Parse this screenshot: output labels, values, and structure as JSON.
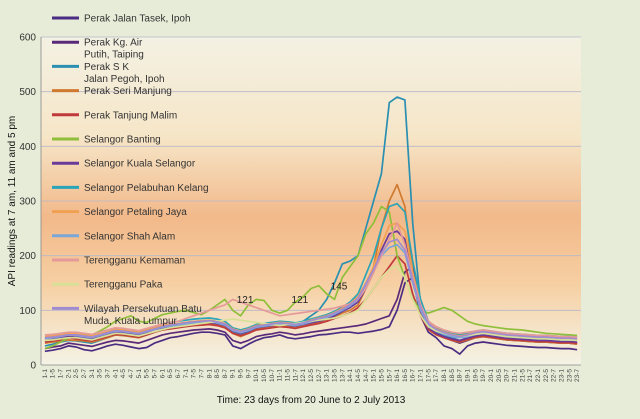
{
  "chart_data": {
    "type": "line",
    "title": "",
    "xlabel": "Time: 23 days from 20 June to 2 July 2013",
    "ylabel": "API readings at 7 am, 11 am and 5 pm",
    "ylim": [
      0,
      600
    ],
    "yticks": [
      0,
      100,
      200,
      300,
      400,
      500,
      600
    ],
    "grid": true,
    "legend_position": "left",
    "categories": [
      "1-1",
      "1-5",
      "1-7",
      "2-1",
      "2-5",
      "2-7",
      "3-1",
      "3-5",
      "3-7",
      "4-1",
      "4-5",
      "4-7",
      "5-1",
      "5-5",
      "5-7",
      "6-1",
      "6-5",
      "6-7",
      "7-1",
      "7-5",
      "7-7",
      "8-1",
      "8-5",
      "8-7",
      "9-1",
      "9-5",
      "9-7",
      "10-1",
      "10-5",
      "10-7",
      "11-1",
      "11-5",
      "11-7",
      "12-1",
      "12-5",
      "12-7",
      "13-1",
      "13-5",
      "13-7",
      "14-1",
      "14-5",
      "14-7",
      "15-1",
      "15-5",
      "15-7",
      "16-1",
      "16-5",
      "16-7",
      "17-1",
      "17-5",
      "17-7",
      "18-1",
      "18-5",
      "18-7",
      "19-1",
      "19-5",
      "19-7",
      "20-1",
      "20-5",
      "20-7",
      "21-1",
      "21-5",
      "21-7",
      "22-1",
      "22-5",
      "22-7",
      "23-1",
      "23-5",
      "23-7"
    ],
    "annotations": [
      {
        "label": "487",
        "x": "16-3",
        "y": 487
      },
      {
        "label": "145",
        "x": "13-1",
        "y": 145
      },
      {
        "label": "121",
        "x": "9-1",
        "y": 121
      },
      {
        "label": "121",
        "x": "11-5",
        "y": 121
      }
    ],
    "series": [
      {
        "name": "Perak Jalan Tasek, Ipoh",
        "color": "#4a2c82",
        "values": [
          25,
          27,
          30,
          35,
          33,
          28,
          26,
          30,
          35,
          38,
          36,
          33,
          30,
          32,
          40,
          45,
          50,
          52,
          55,
          58,
          60,
          60,
          58,
          55,
          35,
          30,
          38,
          45,
          50,
          52,
          55,
          50,
          48,
          50,
          52,
          55,
          56,
          58,
          60,
          60,
          58,
          60,
          62,
          65,
          70,
          100,
          150,
          160,
          90,
          60,
          50,
          35,
          30,
          20,
          35,
          40,
          42,
          40,
          38,
          36,
          35,
          34,
          33,
          32,
          32,
          31,
          30,
          30,
          28
        ]
      },
      {
        "name": "Perak Kg. Air Putih, Taiping",
        "color": "#5a2a7a",
        "values": [
          30,
          33,
          35,
          40,
          38,
          36,
          34,
          38,
          42,
          45,
          44,
          42,
          40,
          45,
          50,
          55,
          58,
          60,
          62,
          64,
          65,
          66,
          64,
          60,
          45,
          40,
          45,
          52,
          55,
          57,
          60,
          58,
          55,
          57,
          60,
          62,
          64,
          66,
          68,
          70,
          72,
          75,
          80,
          85,
          90,
          120,
          170,
          180,
          110,
          70,
          60,
          50,
          45,
          40,
          45,
          50,
          52,
          50,
          48,
          46,
          45,
          44,
          43,
          42,
          42,
          41,
          40,
          40,
          38
        ]
      },
      {
        "name": "Perak S K Jalan Pegoh, Ipoh",
        "color": "#2a8fb0",
        "values": [
          35,
          38,
          42,
          45,
          44,
          42,
          40,
          45,
          50,
          55,
          54,
          52,
          50,
          55,
          60,
          65,
          70,
          72,
          74,
          76,
          78,
          80,
          78,
          72,
          60,
          55,
          60,
          68,
          72,
          75,
          80,
          78,
          75,
          80,
          90,
          100,
          120,
          150,
          185,
          190,
          200,
          250,
          300,
          350,
          480,
          490,
          485,
          260,
          110,
          70,
          60,
          55,
          50,
          45,
          50,
          55,
          58,
          56,
          54,
          52,
          50,
          48,
          46,
          45,
          44,
          43,
          42,
          41,
          40
        ]
      },
      {
        "name": "Perak Seri Manjung",
        "color": "#d07a30",
        "values": [
          40,
          42,
          44,
          46,
          45,
          44,
          42,
          46,
          50,
          55,
          54,
          52,
          50,
          55,
          60,
          65,
          68,
          70,
          72,
          74,
          75,
          76,
          74,
          70,
          58,
          52,
          58,
          65,
          68,
          70,
          72,
          70,
          68,
          72,
          75,
          78,
          82,
          88,
          95,
          100,
          110,
          140,
          180,
          250,
          300,
          330,
          290,
          170,
          100,
          65,
          55,
          50,
          45,
          42,
          46,
          50,
          52,
          50,
          48,
          46,
          45,
          44,
          43,
          42,
          42,
          41,
          40,
          40,
          38
        ]
      },
      {
        "name": "Perak Tanjung Malim",
        "color": "#c0393b",
        "values": [
          42,
          44,
          46,
          50,
          48,
          46,
          44,
          48,
          52,
          56,
          55,
          53,
          51,
          55,
          60,
          64,
          66,
          68,
          70,
          72,
          73,
          74,
          72,
          68,
          58,
          54,
          58,
          64,
          66,
          68,
          70,
          69,
          67,
          70,
          73,
          76,
          80,
          85,
          90,
          95,
          105,
          120,
          140,
          160,
          180,
          200,
          185,
          130,
          90,
          65,
          56,
          50,
          46,
          43,
          47,
          51,
          53,
          51,
          49,
          47,
          46,
          45,
          44,
          43,
          43,
          42,
          41,
          41,
          40
        ]
      },
      {
        "name": "Selangor Banting",
        "color": "#8fbf3a",
        "values": [
          30,
          35,
          42,
          50,
          55,
          58,
          55,
          62,
          70,
          80,
          85,
          90,
          80,
          78,
          85,
          92,
          95,
          98,
          100,
          96,
          92,
          100,
          110,
          120,
          100,
          90,
          110,
          120,
          118,
          100,
          95,
          100,
          115,
          125,
          140,
          145,
          130,
          120,
          160,
          180,
          200,
          240,
          260,
          290,
          280,
          200,
          160,
          120,
          100,
          95,
          100,
          105,
          100,
          90,
          80,
          75,
          72,
          70,
          68,
          66,
          65,
          64,
          62,
          60,
          58,
          57,
          56,
          55,
          54
        ]
      },
      {
        "name": "Selangor Kuala Selangor",
        "color": "#6a3a9a",
        "values": [
          45,
          47,
          50,
          52,
          51,
          50,
          48,
          52,
          56,
          60,
          59,
          57,
          55,
          60,
          65,
          68,
          70,
          72,
          74,
          76,
          77,
          78,
          76,
          72,
          62,
          58,
          62,
          68,
          70,
          72,
          74,
          73,
          71,
          74,
          77,
          80,
          84,
          90,
          98,
          105,
          115,
          140,
          170,
          210,
          240,
          245,
          230,
          160,
          100,
          68,
          58,
          52,
          48,
          45,
          49,
          53,
          55,
          53,
          51,
          49,
          48,
          47,
          46,
          45,
          45,
          44,
          43,
          43,
          42
        ]
      },
      {
        "name": "Selangor Pelabuhan Kelang",
        "color": "#2aa4b8",
        "values": [
          50,
          52,
          55,
          58,
          56,
          54,
          52,
          56,
          60,
          65,
          64,
          62,
          60,
          65,
          70,
          75,
          78,
          80,
          82,
          84,
          85,
          86,
          84,
          80,
          68,
          64,
          68,
          74,
          76,
          78,
          80,
          79,
          77,
          80,
          84,
          88,
          92,
          98,
          106,
          115,
          130,
          165,
          200,
          250,
          290,
          295,
          280,
          190,
          120,
          80,
          68,
          62,
          58,
          55,
          58,
          62,
          64,
          62,
          60,
          58,
          57,
          56,
          55,
          54,
          54,
          53,
          52,
          52,
          51
        ]
      },
      {
        "name": "Selangor Petaling Jaya",
        "color": "#f0a050",
        "values": [
          52,
          54,
          56,
          58,
          57,
          55,
          53,
          57,
          61,
          65,
          64,
          62,
          60,
          64,
          68,
          72,
          74,
          76,
          78,
          80,
          81,
          82,
          80,
          76,
          66,
          62,
          66,
          72,
          74,
          76,
          78,
          77,
          75,
          78,
          82,
          86,
          90,
          96,
          104,
          112,
          125,
          150,
          180,
          220,
          255,
          260,
          245,
          170,
          110,
          78,
          66,
          60,
          56,
          53,
          56,
          60,
          62,
          60,
          58,
          56,
          55,
          54,
          53,
          52,
          52,
          51,
          50,
          50,
          49
        ]
      },
      {
        "name": "Selangor Shah Alam",
        "color": "#7aa6d8",
        "values": [
          48,
          50,
          52,
          55,
          54,
          52,
          50,
          54,
          58,
          62,
          61,
          59,
          57,
          61,
          65,
          69,
          71,
          73,
          75,
          77,
          78,
          79,
          77,
          73,
          63,
          59,
          63,
          69,
          71,
          73,
          75,
          74,
          72,
          75,
          79,
          83,
          87,
          93,
          100,
          108,
          120,
          145,
          170,
          200,
          215,
          220,
          205,
          150,
          100,
          72,
          62,
          56,
          52,
          50,
          52,
          56,
          58,
          56,
          54,
          52,
          51,
          50,
          49,
          48,
          48,
          47,
          46,
          46,
          45
        ]
      },
      {
        "name": "Terengganu Kemaman",
        "color": "#e59a9a",
        "values": [
          55,
          56,
          58,
          60,
          60,
          58,
          56,
          60,
          64,
          68,
          67,
          65,
          63,
          67,
          71,
          75,
          78,
          80,
          85,
          90,
          95,
          100,
          105,
          110,
          120,
          115,
          110,
          105,
          100,
          95,
          90,
          92,
          94,
          96,
          98,
          100,
          102,
          104,
          108,
          112,
          120,
          140,
          170,
          200,
          230,
          260,
          220,
          160,
          110,
          80,
          70,
          64,
          60,
          58,
          60,
          62,
          64,
          62,
          60,
          58,
          57,
          56,
          55,
          54,
          54,
          53,
          52,
          52,
          51
        ]
      },
      {
        "name": "Terengganu Paka",
        "color": "#d7e096",
        "values": [
          45,
          46,
          48,
          50,
          50,
          48,
          46,
          50,
          54,
          58,
          57,
          55,
          53,
          57,
          61,
          65,
          68,
          70,
          72,
          74,
          76,
          78,
          80,
          82,
          84,
          82,
          80,
          78,
          76,
          74,
          72,
          74,
          76,
          78,
          80,
          82,
          84,
          86,
          90,
          94,
          100,
          120,
          140,
          160,
          175,
          180,
          160,
          120,
          90,
          70,
          62,
          58,
          55,
          52,
          54,
          56,
          58,
          56,
          54,
          52,
          51,
          50,
          49,
          48,
          48,
          47,
          46,
          46,
          45
        ]
      },
      {
        "name": "Wilayah Persekutuan Batu Muda, Kuala Lumpur",
        "color": "#a08bd0",
        "values": [
          50,
          51,
          53,
          55,
          55,
          53,
          51,
          55,
          59,
          63,
          62,
          60,
          58,
          62,
          66,
          70,
          73,
          75,
          77,
          79,
          80,
          81,
          79,
          75,
          65,
          61,
          65,
          71,
          73,
          75,
          77,
          76,
          74,
          77,
          81,
          85,
          89,
          95,
          102,
          110,
          122,
          148,
          175,
          205,
          225,
          230,
          210,
          155,
          105,
          76,
          65,
          59,
          55,
          52,
          55,
          59,
          61,
          59,
          57,
          55,
          54,
          53,
          52,
          51,
          51,
          50,
          49,
          49,
          48
        ]
      }
    ]
  }
}
